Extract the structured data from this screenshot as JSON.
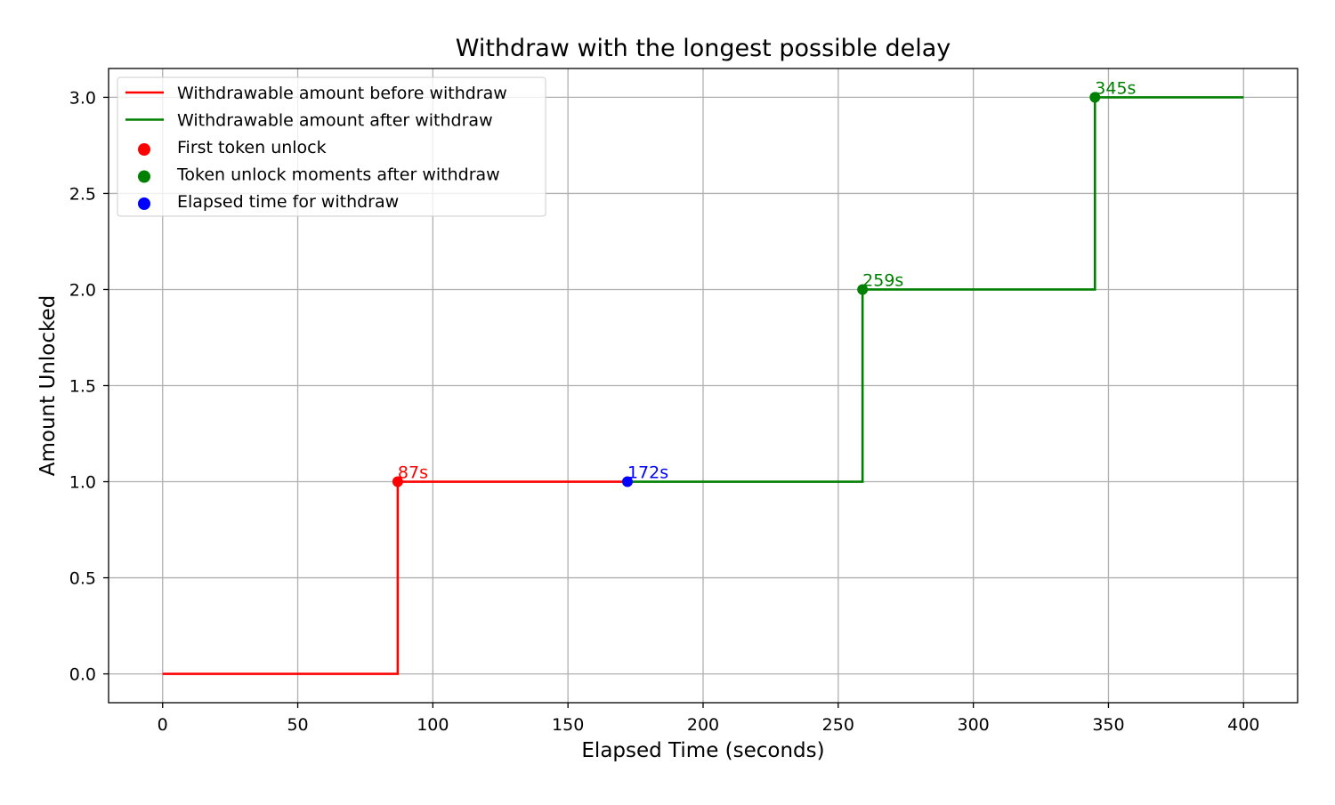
{
  "chart_data": {
    "type": "line",
    "title": "Withdraw with the longest possible delay",
    "xlabel": "Elapsed Time (seconds)",
    "ylabel": "Amount Unlocked",
    "xlim": [
      -20,
      420
    ],
    "ylim": [
      -0.15,
      3.15
    ],
    "xticks": [
      0,
      50,
      100,
      150,
      200,
      250,
      300,
      350,
      400
    ],
    "xtick_labels": [
      "0",
      "50",
      "100",
      "150",
      "200",
      "250",
      "300",
      "350",
      "400"
    ],
    "yticks": [
      0,
      0.5,
      1,
      1.5,
      2,
      2.5,
      3
    ],
    "ytick_labels": [
      "0.0",
      "0.5",
      "1.0",
      "1.5",
      "2.0",
      "2.5",
      "3.0"
    ],
    "grid": true,
    "legend_position": "top-left",
    "series": [
      {
        "name": "Withdrawable amount before withdraw",
        "kind": "step",
        "color": "#ff0000",
        "x": [
          0,
          87,
          87,
          172
        ],
        "y": [
          0,
          0,
          1,
          1
        ]
      },
      {
        "name": "Withdrawable amount after withdraw",
        "kind": "step",
        "color": "#008000",
        "x": [
          172,
          259,
          259,
          345,
          345,
          400
        ],
        "y": [
          1,
          1,
          2,
          2,
          3,
          3
        ]
      },
      {
        "name": "First token unlock",
        "kind": "scatter",
        "color": "#ff0000",
        "x": [
          87
        ],
        "y": [
          1
        ]
      },
      {
        "name": "Token unlock moments after withdraw",
        "kind": "scatter",
        "color": "#008000",
        "x": [
          259,
          345
        ],
        "y": [
          2,
          3
        ]
      },
      {
        "name": "Elapsed time for withdraw",
        "kind": "scatter",
        "color": "#0000ff",
        "x": [
          172
        ],
        "y": [
          1
        ]
      }
    ],
    "annotations": [
      {
        "text": "87s",
        "x": 87,
        "y": 1,
        "color": "#ff0000"
      },
      {
        "text": "172s",
        "x": 172,
        "y": 1,
        "color": "#0000ff"
      },
      {
        "text": "259s",
        "x": 259,
        "y": 2,
        "color": "#008000"
      },
      {
        "text": "345s",
        "x": 345,
        "y": 3,
        "color": "#008000"
      }
    ]
  }
}
